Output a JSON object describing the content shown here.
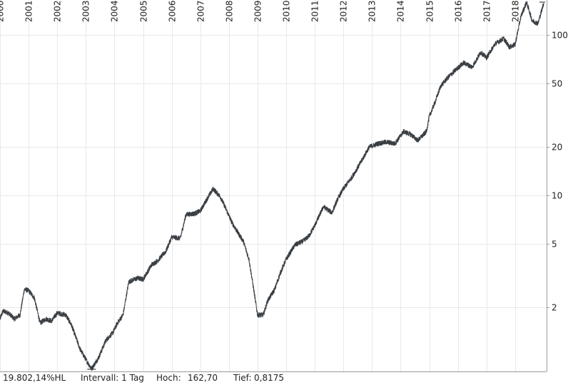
{
  "chart_data": {
    "type": "line",
    "yscale": "log",
    "ylim": [
      0.8,
      165
    ],
    "xlim": [
      2000.0,
      2019.1
    ],
    "x_tick_labels": [
      "2000",
      "2001",
      "2002",
      "2003",
      "2004",
      "2005",
      "2006",
      "2007",
      "2008",
      "2009",
      "2010",
      "2011",
      "2012",
      "2013",
      "2014",
      "2015",
      "2016",
      "2017",
      "2018"
    ],
    "y_tick_labels": [
      {
        "value": 2,
        "label": "2"
      },
      {
        "value": 5,
        "label": "5"
      },
      {
        "value": 10,
        "label": "10"
      },
      {
        "value": 20,
        "label": "20"
      },
      {
        "value": 50,
        "label": "50"
      },
      {
        "value": 100,
        "label": "100"
      }
    ],
    "grid": true,
    "series": [
      {
        "x": [
          2000.0,
          2000.1,
          2000.3,
          2000.5,
          2000.7,
          2000.85,
          2001.0,
          2001.2,
          2001.4,
          2001.6,
          2001.8,
          2002.0,
          2002.3,
          2002.5,
          2002.8,
          2003.0,
          2003.2,
          2003.45,
          2003.7,
          2003.95,
          2004.1,
          2004.3,
          2004.5,
          2004.8,
          2005.0,
          2005.3,
          2005.5,
          2005.8,
          2006.0,
          2006.3,
          2006.5,
          2006.8,
          2007.0,
          2007.25,
          2007.45,
          2007.7,
          2007.9,
          2008.1,
          2008.3,
          2008.5,
          2008.7,
          2008.85,
          2009.0,
          2009.2,
          2009.35,
          2009.6,
          2009.8,
          2010.0,
          2010.3,
          2010.6,
          2010.8,
          2011.0,
          2011.3,
          2011.6,
          2011.8,
          2012.0,
          2012.3,
          2012.6,
          2012.9,
          2013.2,
          2013.5,
          2013.8,
          2014.1,
          2014.35,
          2014.6,
          2014.9,
          2015.0,
          2015.2,
          2015.4,
          2015.6,
          2015.9,
          2016.2,
          2016.5,
          2016.8,
          2017.0,
          2017.3,
          2017.6,
          2017.8,
          2018.0,
          2018.2,
          2018.4,
          2018.6,
          2018.8,
          2019.0
        ],
        "y": [
          1.7,
          1.9,
          1.85,
          1.7,
          1.8,
          2.6,
          2.55,
          2.3,
          1.6,
          1.7,
          1.65,
          1.85,
          1.8,
          1.55,
          1.1,
          0.95,
          0.83,
          0.98,
          1.25,
          1.4,
          1.6,
          1.8,
          2.9,
          3.05,
          3.0,
          3.7,
          3.9,
          4.5,
          5.5,
          5.4,
          7.6,
          7.7,
          8.0,
          9.6,
          11.0,
          9.8,
          8.2,
          6.8,
          5.9,
          5.2,
          4.0,
          2.7,
          1.8,
          1.8,
          2.2,
          2.6,
          3.3,
          4.0,
          4.9,
          5.2,
          5.6,
          6.5,
          8.5,
          7.8,
          9.5,
          11.0,
          13.0,
          16.0,
          20.0,
          21.0,
          21.5,
          21.0,
          25.0,
          24.0,
          22.0,
          25.0,
          31.0,
          38.0,
          48.0,
          53.0,
          60.0,
          67.0,
          63.0,
          78.0,
          72.0,
          88.0,
          95.0,
          84.0,
          87.0,
          130.0,
          160.0,
          122.0,
          118.0,
          158.0
        ]
      }
    ]
  },
  "footer": {
    "change": "19.802,14%HL",
    "interval": "Intervall: 1 Tag",
    "high_label": "Hoch:",
    "high_value": "162,70",
    "low_label": "Tief:",
    "low_value": "0,8175"
  },
  "colors": {
    "line": "#3a3f44",
    "grid": "#e8e8e8",
    "axis": "#999999",
    "text": "#222222"
  }
}
